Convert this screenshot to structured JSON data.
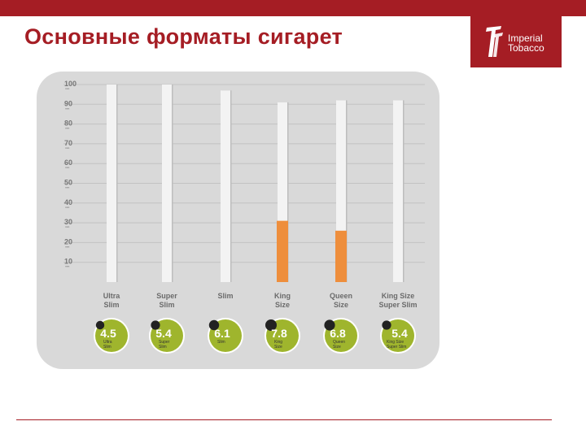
{
  "header": {
    "title": "Основные форматы сигарет",
    "logo_line1": "Imperial",
    "logo_line2": "Tobacco"
  },
  "colors": {
    "brand": "#a51d24",
    "panel": "#d9d9d9",
    "grid": "#c2c2c2",
    "stick": "#f3f3f3",
    "filter": "#ee8e3c",
    "badge_fill": "#9fb52d",
    "badge_ring": "#ffffff",
    "dot": "#222222"
  },
  "chart_data": {
    "type": "bar",
    "ylim": [
      0,
      100
    ],
    "yticks": [
      10,
      20,
      30,
      40,
      50,
      60,
      70,
      80,
      90,
      100
    ],
    "ytick_labels": [
      "10",
      "20",
      "30",
      "40",
      "50",
      "60",
      "70",
      "80",
      "90",
      "100"
    ],
    "ytick_unit": "mm",
    "categories": [
      {
        "label_lines": [
          "Ultra",
          "Slim"
        ],
        "length": 100,
        "filter": 0,
        "diameter": "4.5",
        "badge_lines": [
          "Ultra",
          "Slim"
        ],
        "dot_size": 0.55
      },
      {
        "label_lines": [
          "Super",
          "Slim"
        ],
        "length": 100,
        "filter": 0,
        "diameter": "5.4",
        "badge_lines": [
          "Super",
          "Slim"
        ],
        "dot_size": 0.65
      },
      {
        "label_lines": [
          "Slim"
        ],
        "length": 97,
        "filter": 0,
        "diameter": "6.1",
        "badge_lines": [
          "Slim"
        ],
        "dot_size": 0.8
      },
      {
        "label_lines": [
          "King",
          "Size"
        ],
        "length": 91,
        "filter": 31,
        "diameter": "7.8",
        "badge_lines": [
          "King",
          "Size"
        ],
        "dot_size": 1.0
      },
      {
        "label_lines": [
          "Queen",
          "Size"
        ],
        "length": 92,
        "filter": 26,
        "diameter": "6.8",
        "badge_lines": [
          "Queen",
          "Size"
        ],
        "dot_size": 0.9
      },
      {
        "label_lines": [
          "King Size",
          "Super Slim"
        ],
        "length": 92,
        "filter": 0,
        "diameter": "5.4",
        "badge_lines": [
          "King Size",
          "Super Slim"
        ],
        "dot_size": 0.65
      }
    ]
  }
}
